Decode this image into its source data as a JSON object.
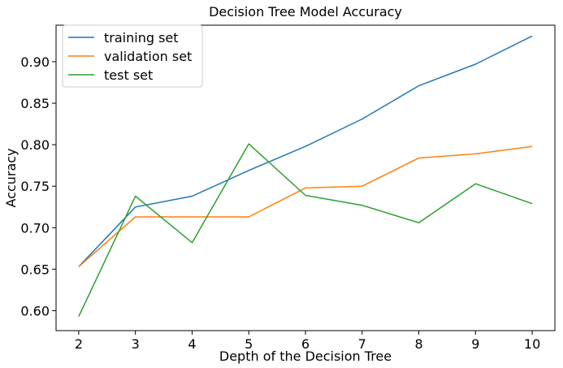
{
  "chart_data": {
    "type": "line",
    "title": "Decision Tree Model Accuracy",
    "xlabel": "Depth of the Decision Tree",
    "ylabel": "Accuracy",
    "x": [
      2,
      3,
      4,
      5,
      6,
      7,
      8,
      9,
      10
    ],
    "xlim": [
      1.6,
      10.4
    ],
    "ylim": [
      0.576,
      0.944
    ],
    "xticks": [
      2,
      3,
      4,
      5,
      6,
      7,
      8,
      9,
      10
    ],
    "yticks": [
      0.6,
      0.65,
      0.7,
      0.75,
      0.8,
      0.85,
      0.9
    ],
    "ytick_labels": [
      "0.60",
      "0.65",
      "0.70",
      "0.75",
      "0.80",
      "0.85",
      "0.90"
    ],
    "grid": false,
    "legend_position": "top-left",
    "series": [
      {
        "name": "training set",
        "color": "#1f77b4",
        "values": [
          0.653,
          0.725,
          0.738,
          0.769,
          0.798,
          0.831,
          0.871,
          0.897,
          0.931
        ]
      },
      {
        "name": "validation set",
        "color": "#ff7f0e",
        "values": [
          0.653,
          0.713,
          0.713,
          0.713,
          0.748,
          0.75,
          0.784,
          0.789,
          0.798
        ]
      },
      {
        "name": "test set",
        "color": "#2ca02c",
        "values": [
          0.593,
          0.738,
          0.682,
          0.801,
          0.739,
          0.727,
          0.706,
          0.753,
          0.729
        ]
      }
    ]
  }
}
